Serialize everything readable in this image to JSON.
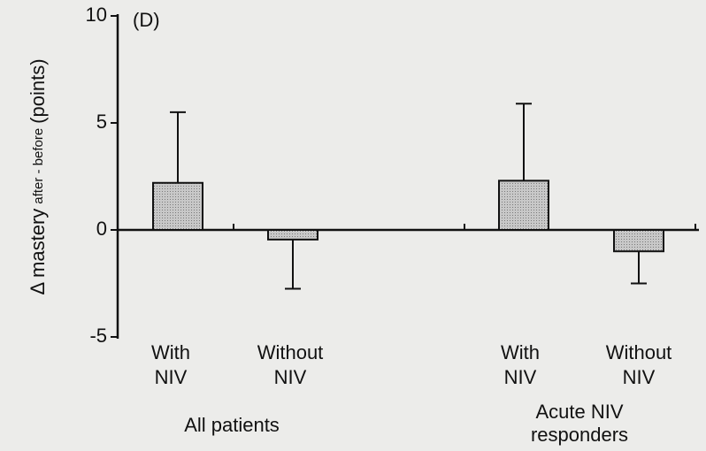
{
  "chart_data": {
    "type": "bar",
    "panel_label": "(D)",
    "ylabel": {
      "main": "Δ mastery",
      "sub": "after - before",
      "unit": "(points)"
    },
    "categories": [
      [
        "With",
        "NIV"
      ],
      [
        "Without",
        "NIV"
      ],
      [
        "With",
        "NIV"
      ],
      [
        "Without",
        "NIV"
      ]
    ],
    "groups": [
      [
        "All patients"
      ],
      [
        "Acute NIV",
        "responders"
      ]
    ],
    "values": [
      2.2,
      -0.45,
      2.3,
      -1.0
    ],
    "errors": [
      3.3,
      2.3,
      3.6,
      1.5
    ],
    "color": "#bdbdbd",
    "ylim": [
      -5,
      10
    ],
    "yticks": [
      -5,
      0,
      5,
      10
    ]
  }
}
